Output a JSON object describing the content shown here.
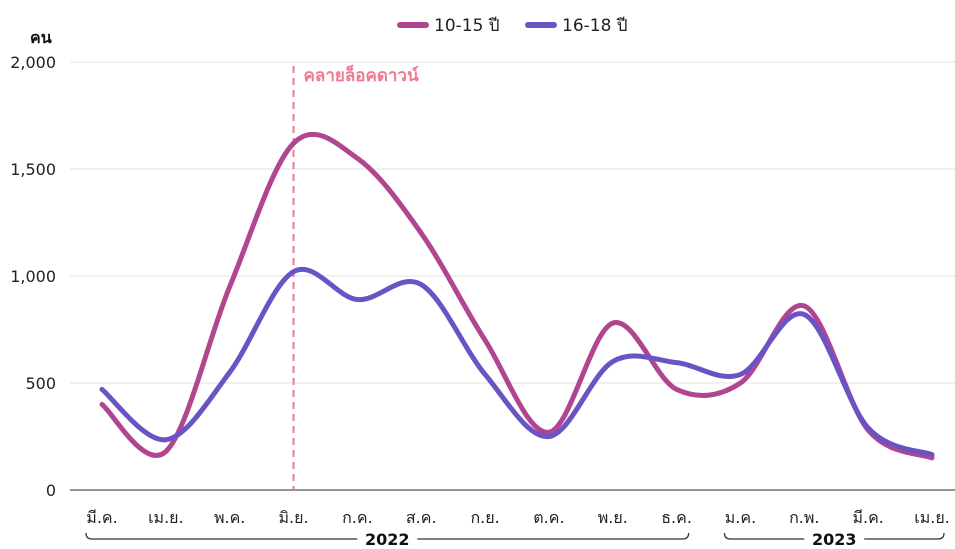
{
  "chart_data": {
    "type": "line",
    "ylabel": "คน",
    "ylim": [
      0,
      2000
    ],
    "yticks": [
      0,
      500,
      1000,
      1500,
      2000
    ],
    "ytick_labels": [
      "0",
      "500",
      "1,000",
      "1,500",
      "2,000"
    ],
    "categories": [
      "มี.ค.",
      "เม.ย.",
      "พ.ค.",
      "มิ.ย.",
      "ก.ค.",
      "ส.ค.",
      "ก.ย.",
      "ต.ค.",
      "พ.ย.",
      "ธ.ค.",
      "ม.ค.",
      "ก.พ.",
      "มี.ค.",
      "เม.ย."
    ],
    "year_groups": [
      {
        "label": "2022",
        "from": 0,
        "to": 9
      },
      {
        "label": "2023",
        "from": 10,
        "to": 13
      }
    ],
    "series": [
      {
        "name": "10-15 ปี",
        "color": "#b0468f",
        "values": [
          400,
          180,
          950,
          1620,
          1550,
          1200,
          700,
          270,
          780,
          470,
          500,
          860,
          280,
          150
        ]
      },
      {
        "name": "16-18 ปี",
        "color": "#6a54c4",
        "values": [
          470,
          235,
          550,
          1020,
          890,
          960,
          540,
          250,
          600,
          595,
          540,
          820,
          290,
          165
        ]
      }
    ],
    "annotation": {
      "label": "คลายล็อคดาวน์",
      "index": 3,
      "color": "#ef7a90"
    },
    "legend": "top-center",
    "grid": true
  }
}
